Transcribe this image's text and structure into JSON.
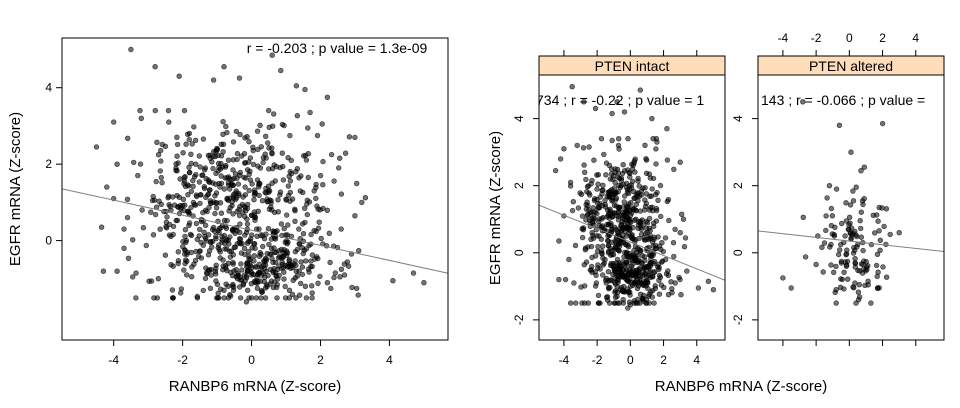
{
  "chart_data": [
    {
      "id": "overall",
      "type": "scatter",
      "annotation": "r = -0.203 ; p value = 1.3e-09",
      "xlabel": "RANBP6 mRNA (Z-score)",
      "ylabel": "EGFR mRNA (Z-score)",
      "xlim": [
        -5.5,
        5.7
      ],
      "ylim": [
        -2.6,
        5.3
      ],
      "xticks": [
        "-4",
        "-2",
        "0",
        "2",
        "4"
      ],
      "yticks": [
        "0",
        "2",
        "4"
      ],
      "fit": {
        "intercept": 0.27,
        "slope": -0.197
      },
      "point_color": "#000000",
      "fit_color": "#808080",
      "point_clusters": [
        {
          "cx": -0.6,
          "cy": 1.2,
          "sx": 1.1,
          "sy": 0.9,
          "n": 360
        },
        {
          "cx": 0.2,
          "cy": -0.7,
          "sx": 1.0,
          "sy": 0.45,
          "n": 260
        },
        {
          "cx": -1.9,
          "cy": 0.3,
          "sx": 0.9,
          "sy": 1.2,
          "n": 120
        },
        {
          "cx": 1.4,
          "cy": 0.8,
          "sx": 0.9,
          "sy": 1.1,
          "n": 90
        }
      ],
      "outliers": [
        [
          -3.5,
          5.0
        ],
        [
          0.6,
          4.85
        ],
        [
          -2.8,
          4.55
        ],
        [
          -0.8,
          4.55
        ],
        [
          -0.35,
          4.25
        ],
        [
          -1.1,
          4.2
        ],
        [
          0.85,
          4.45
        ],
        [
          1.3,
          4.05
        ],
        [
          1.55,
          3.95
        ],
        [
          -2.1,
          4.3
        ],
        [
          -3.2,
          3.2
        ],
        [
          -4.0,
          3.1
        ],
        [
          2.2,
          3.75
        ],
        [
          1.7,
          3.35
        ],
        [
          -2.4,
          3.1
        ],
        [
          3.0,
          2.7
        ],
        [
          -4.5,
          2.45
        ],
        [
          2.05,
          3.05
        ],
        [
          -4.35,
          0.35
        ],
        [
          -3.7,
          0.3
        ],
        [
          2.6,
          0.3
        ],
        [
          3.0,
          0.65
        ],
        [
          -3.7,
          -0.2
        ],
        [
          -3.9,
          -0.8
        ],
        [
          -4.3,
          -0.8
        ],
        [
          -3.35,
          -0.85
        ],
        [
          -3.45,
          -0.95
        ],
        [
          4.1,
          -1.05
        ],
        [
          4.7,
          -0.85
        ],
        [
          5.0,
          -1.1
        ],
        [
          2.7,
          -0.9
        ],
        [
          3.05,
          -1.25
        ],
        [
          2.3,
          -1.25
        ],
        [
          0.0,
          -1.5
        ],
        [
          -0.15,
          -1.6
        ],
        [
          0.3,
          -1.35
        ],
        [
          -0.8,
          -1.3
        ],
        [
          1.1,
          -1.3
        ],
        [
          2.2,
          -1.1
        ],
        [
          -4.0,
          1.1
        ],
        [
          3.2,
          1.0
        ],
        [
          2.9,
          -0.35
        ],
        [
          -3.3,
          1.7
        ],
        [
          -3.9,
          2.0
        ],
        [
          -4.2,
          1.4
        ]
      ]
    },
    {
      "id": "pten-intact",
      "type": "scatter",
      "panel_label": "PTEN intact",
      "annotation": "734 ; r = -0.22 ; p value = 1",
      "xlim": [
        -5.5,
        5.7
      ],
      "ylim": [
        -2.6,
        5.3
      ],
      "xticks": [
        "-4",
        "-2",
        "0",
        "2",
        "4"
      ],
      "yticks": [
        "-2",
        "0",
        "2",
        "4"
      ],
      "fit": {
        "intercept": 0.32,
        "slope": -0.2
      },
      "point_color": "#000000",
      "fit_color": "#808080",
      "point_clusters": [
        {
          "cx": -0.5,
          "cy": 1.2,
          "sx": 1.1,
          "sy": 0.9,
          "n": 300
        },
        {
          "cx": 0.2,
          "cy": -0.7,
          "sx": 1.0,
          "sy": 0.45,
          "n": 230
        },
        {
          "cx": -1.8,
          "cy": 0.3,
          "sx": 0.9,
          "sy": 1.2,
          "n": 110
        },
        {
          "cx": 1.3,
          "cy": 0.8,
          "sx": 0.9,
          "sy": 1.1,
          "n": 80
        }
      ],
      "outliers": [
        [
          -3.5,
          4.95
        ],
        [
          0.6,
          4.85
        ],
        [
          -2.8,
          4.5
        ],
        [
          -0.8,
          4.5
        ],
        [
          -0.35,
          4.2
        ],
        [
          -1.1,
          4.15
        ],
        [
          1.3,
          4.0
        ],
        [
          -2.1,
          4.3
        ],
        [
          -4.2,
          2.8
        ],
        [
          -4.0,
          3.1
        ],
        [
          -3.2,
          3.2
        ],
        [
          2.2,
          3.7
        ],
        [
          1.6,
          3.3
        ],
        [
          3.0,
          2.7
        ],
        [
          -4.5,
          2.45
        ],
        [
          -4.3,
          0.35
        ],
        [
          -3.7,
          -0.2
        ],
        [
          -3.9,
          -0.8
        ],
        [
          -4.3,
          -0.8
        ],
        [
          -3.4,
          -0.9
        ],
        [
          4.1,
          -1.05
        ],
        [
          4.7,
          -0.85
        ],
        [
          5.0,
          -1.1
        ],
        [
          2.7,
          -0.9
        ],
        [
          3.05,
          -1.25
        ],
        [
          2.3,
          -1.25
        ],
        [
          0.0,
          -1.55
        ],
        [
          -0.15,
          -1.65
        ],
        [
          -0.8,
          -1.3
        ],
        [
          1.1,
          -1.3
        ],
        [
          3.0,
          0.6
        ],
        [
          2.6,
          0.3
        ],
        [
          -4.0,
          1.1
        ],
        [
          3.2,
          1.0
        ]
      ]
    },
    {
      "id": "pten-altered",
      "type": "scatter",
      "panel_label": "PTEN altered",
      "annotation": "143 ; r = -0.066 ; p value =",
      "xlim": [
        -5.5,
        5.7
      ],
      "ylim": [
        -2.6,
        5.3
      ],
      "xticks": [
        "-4",
        "-2",
        "0",
        "2",
        "4"
      ],
      "yticks": [
        "-2",
        "0",
        "2",
        "4"
      ],
      "fit": {
        "intercept": 0.35,
        "slope": -0.055
      },
      "point_color": "#000000",
      "fit_color": "#808080",
      "point_clusters": [
        {
          "cx": 0.3,
          "cy": 0.9,
          "sx": 1.0,
          "sy": 0.6,
          "n": 65
        },
        {
          "cx": 0.4,
          "cy": -0.6,
          "sx": 1.0,
          "sy": 0.4,
          "n": 60
        }
      ],
      "outliers": [
        [
          -2.8,
          4.5
        ],
        [
          -0.6,
          3.8
        ],
        [
          2.0,
          3.85
        ],
        [
          0.1,
          3.0
        ],
        [
          0.9,
          2.55
        ],
        [
          -1.2,
          2.0
        ],
        [
          -4.0,
          -0.75
        ],
        [
          -3.5,
          -1.05
        ],
        [
          2.2,
          0.25
        ],
        [
          3.0,
          0.6
        ],
        [
          1.3,
          -1.5
        ],
        [
          0.4,
          -1.5
        ],
        [
          -1.4,
          1.1
        ],
        [
          1.8,
          1.35
        ],
        [
          -1.9,
          0.5
        ],
        [
          -2.0,
          -0.35
        ],
        [
          1.7,
          -1.05
        ],
        [
          -0.8,
          -1.1
        ]
      ]
    }
  ],
  "shared": {
    "xlabel": "RANBP6 mRNA (Z-score)",
    "ylabel": "EGFR mRNA (Z-score)",
    "strip_color": "#FFDDB9"
  }
}
